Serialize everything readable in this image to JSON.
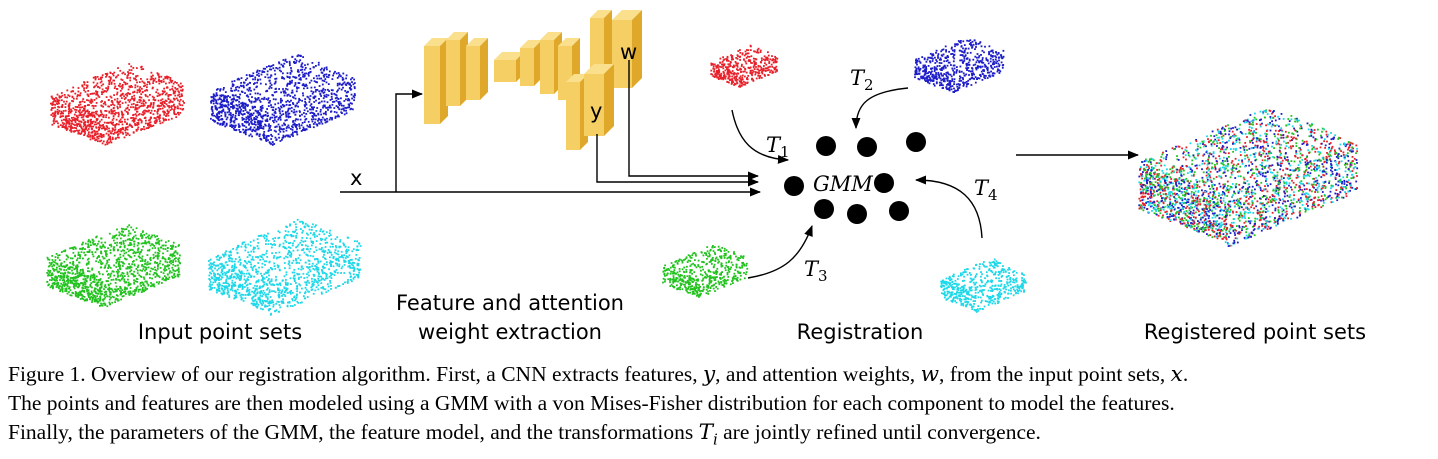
{
  "labels": {
    "input": "Input point sets",
    "feature_line1": "Feature and attention",
    "feature_line2": "weight extraction",
    "registration": "Registration",
    "registered": "Registered point sets"
  },
  "network": {
    "y_label": "y",
    "w_label": "w",
    "x_label": "x"
  },
  "gmm_label": "GMM",
  "transforms": {
    "t1": {
      "base": "T",
      "sub": "1"
    },
    "t2": {
      "base": "T",
      "sub": "2"
    },
    "t3": {
      "base": "T",
      "sub": "3"
    },
    "t4": {
      "base": "T",
      "sub": "4"
    }
  },
  "colors": {
    "red": "#e8202a",
    "blue": "#1c1cc8",
    "green": "#22c21e",
    "cyan": "#1cd8e8",
    "block_face": "#f5cf63",
    "block_side": "#e0a82a",
    "block_top": "#fadf8c"
  },
  "caption": {
    "p1": "Figure 1. Overview of our registration algorithm. First, a CNN extracts features, ",
    "v1": "y",
    "p2": ", and attention weights, ",
    "v2": "w",
    "p3": ", from the input point sets, ",
    "v3": "x",
    "p4": ".",
    "line2": "The points and features are then modeled using a GMM with a von Mises-Fisher distribution for each component to model the features.",
    "line3a": "Finally, the parameters of the GMM, the feature model, and the transformations ",
    "line3t": "T",
    "line3ti": "i",
    "line3b": " are jointly refined until convergence."
  }
}
